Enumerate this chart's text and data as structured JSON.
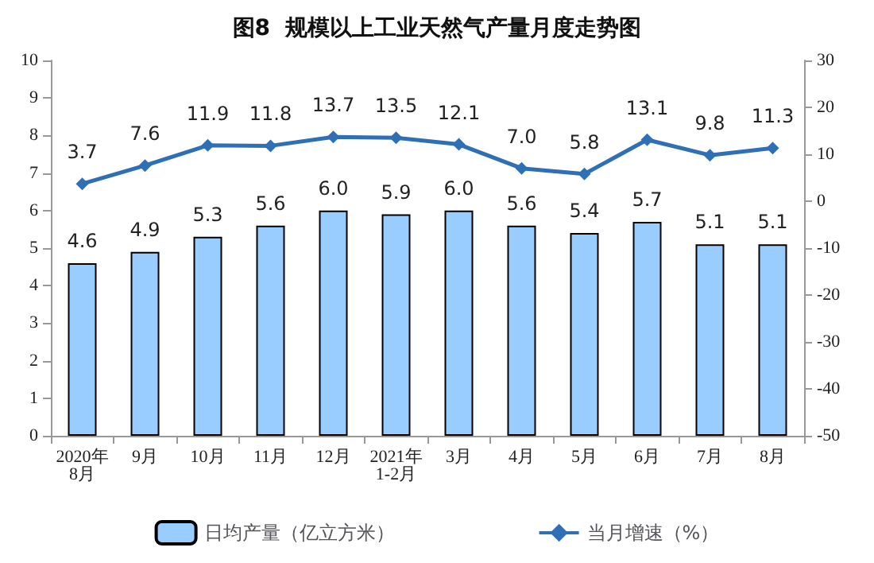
{
  "chart_data": {
    "type": "bar",
    "title": "图8  规模以上工业天然气产量月度走势图",
    "categories": [
      "2020年\n8月",
      "9月",
      "10月",
      "11月",
      "12月",
      "2021年\n1-2月",
      "3月",
      "4月",
      "5月",
      "6月",
      "7月",
      "8月"
    ],
    "series": [
      {
        "name": "日均产量（亿立方米）",
        "color": "#99ccff",
        "values": [
          4.6,
          4.9,
          5.3,
          5.6,
          6.0,
          5.9,
          6.0,
          5.6,
          5.4,
          5.7,
          5.1,
          5.1
        ],
        "value_labels": [
          "4.6",
          "4.9",
          "5.3",
          "5.6",
          "6.0",
          "5.9",
          "6.0",
          "5.6",
          "5.4",
          "5.7",
          "5.1",
          "5.1"
        ]
      },
      {
        "name": "当月增速（%）",
        "type": "line",
        "axis": "y2",
        "color": "#2f6fb5",
        "marker": "diamond",
        "values": [
          3.7,
          7.6,
          11.9,
          11.8,
          13.7,
          13.5,
          12.1,
          7.0,
          5.8,
          13.1,
          9.8,
          11.3
        ],
        "value_labels": [
          "3.7",
          "7.6",
          "11.9",
          "11.8",
          "13.7",
          "13.5",
          "12.1",
          "7.0",
          "5.8",
          "13.1",
          "9.8",
          "11.3"
        ]
      }
    ],
    "ylim": [
      0,
      10
    ],
    "yticks": [
      0,
      1,
      2,
      3,
      4,
      5,
      6,
      7,
      8,
      9,
      10
    ],
    "y2lim": [
      -50,
      30
    ],
    "y2ticks": [
      -50,
      -40,
      -30,
      -20,
      -10,
      0,
      10,
      20,
      30
    ],
    "legend": "bottom",
    "grid": false
  }
}
